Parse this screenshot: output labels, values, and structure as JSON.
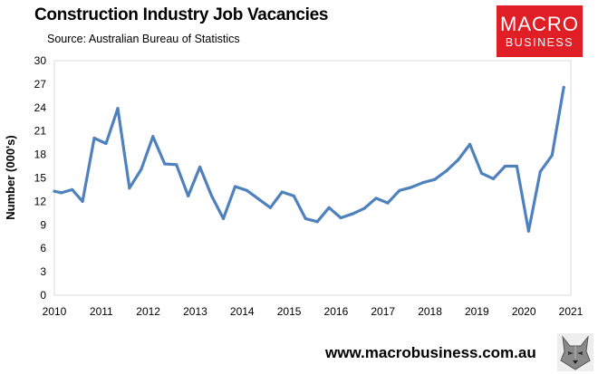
{
  "header": {
    "title": "Construction Industry Job Vacancies",
    "subtitle": "Source: Australian Bureau of Statistics"
  },
  "logo": {
    "line1": "MACRO",
    "line2": "BUSINESS",
    "color": "#e01e26"
  },
  "footer": {
    "url": "www.macrobusiness.com.au"
  },
  "chart_data": {
    "type": "line",
    "ylabel": "Number (000's)",
    "xlabel": "",
    "ylim": [
      0,
      30
    ],
    "xlim": [
      2010,
      2021
    ],
    "yticks": [
      0,
      3,
      6,
      9,
      12,
      15,
      18,
      21,
      24,
      27,
      30
    ],
    "xticks": [
      2010,
      2011,
      2012,
      2013,
      2014,
      2015,
      2016,
      2017,
      2018,
      2019,
      2020,
      2021
    ],
    "grid": false,
    "legend": "none",
    "line_color": "#4f81bd",
    "series": [
      {
        "x": [
          2010.0,
          2010.15,
          2010.38,
          2010.6,
          2010.85,
          2011.1,
          2011.35,
          2011.6,
          2011.85,
          2012.1,
          2012.35,
          2012.6,
          2012.85,
          2013.1,
          2013.35,
          2013.6,
          2013.85,
          2014.1,
          2014.35,
          2014.6,
          2014.85,
          2015.1,
          2015.35,
          2015.6,
          2015.85,
          2016.1,
          2016.35,
          2016.6,
          2016.85,
          2017.1,
          2017.35,
          2017.6,
          2017.85,
          2018.1,
          2018.35,
          2018.6,
          2018.85,
          2019.1,
          2019.35,
          2019.6,
          2019.85,
          2020.1,
          2020.35,
          2020.6,
          2020.85
        ],
        "values": [
          13.3,
          13.1,
          13.5,
          12.0,
          20.1,
          19.4,
          23.9,
          13.7,
          16.1,
          20.3,
          16.8,
          16.7,
          12.7,
          16.4,
          12.7,
          9.8,
          13.9,
          13.4,
          12.3,
          11.2,
          13.2,
          12.7,
          9.8,
          9.4,
          11.2,
          9.9,
          10.4,
          11.1,
          12.4,
          11.8,
          13.4,
          13.8,
          14.4,
          14.8,
          15.9,
          17.3,
          19.3,
          15.6,
          14.9,
          16.5,
          16.5,
          8.2,
          15.8,
          17.9,
          26.6
        ]
      }
    ]
  }
}
